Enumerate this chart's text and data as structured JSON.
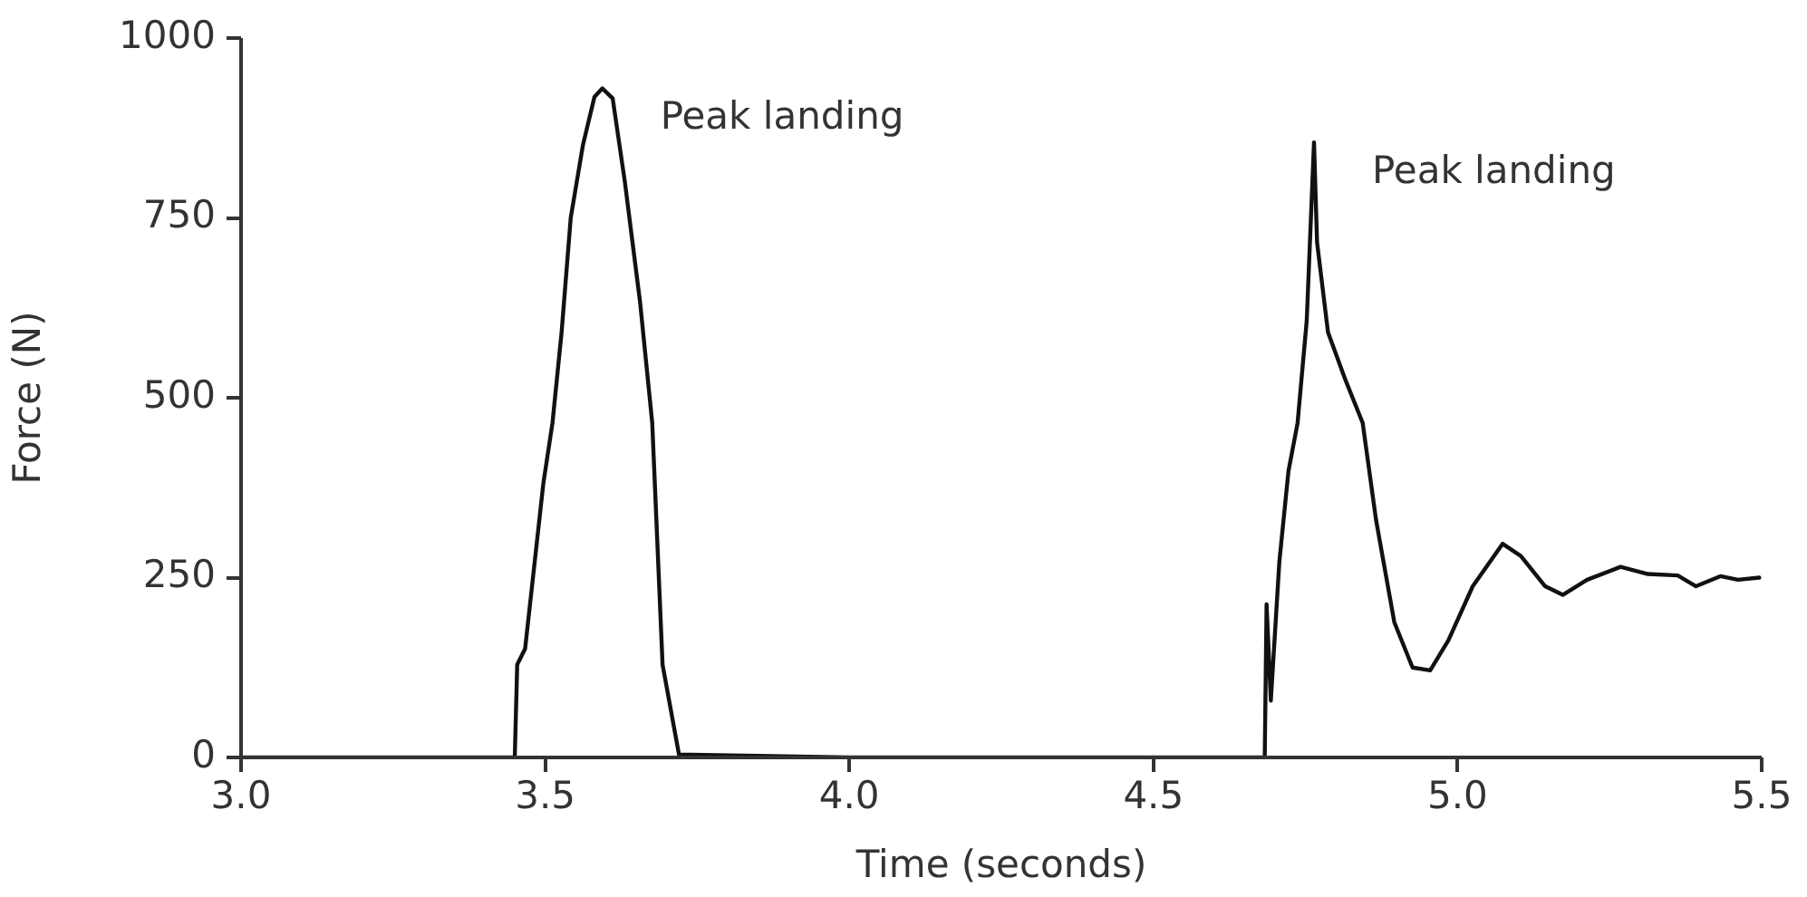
{
  "chart_data": {
    "type": "line",
    "xlabel": "Time (seconds)",
    "ylabel": "Force (N)",
    "xlim": [
      3.0,
      5.5
    ],
    "ylim": [
      0,
      1000
    ],
    "xticks": [
      {
        "value": 3,
        "label": "3.0"
      },
      {
        "value": 3.5,
        "label": "3.5"
      },
      {
        "value": 4,
        "label": "4.0"
      },
      {
        "value": 4.5,
        "label": "4.5"
      },
      {
        "value": 5,
        "label": "5.0"
      },
      {
        "value": 5.5,
        "label": "5.5"
      }
    ],
    "yticks": [
      0,
      250,
      500,
      750,
      1000
    ],
    "grid": false,
    "legend": false,
    "marker": "none",
    "line_style": "solid",
    "annotations": [
      {
        "text": "Peak landing",
        "x": 3.594,
        "y": 930
      },
      {
        "text": "Peak landing",
        "x": 4.764,
        "y": 855
      }
    ],
    "series": [
      {
        "color": "#111111",
        "x": [
          3.0,
          3.45,
          3.454,
          3.467,
          3.497,
          3.512,
          3.527,
          3.542,
          3.562,
          3.581,
          3.594,
          3.611,
          3.631,
          3.656,
          3.676,
          3.693,
          3.72,
          4.0,
          4.5,
          4.683,
          4.686,
          4.693,
          4.707,
          4.722,
          4.737,
          4.752,
          4.764,
          4.769,
          4.787,
          4.816,
          4.844,
          4.866,
          4.896,
          4.926,
          4.955,
          4.985,
          5.025,
          5.074,
          5.104,
          5.144,
          5.173,
          5.213,
          5.268,
          5.313,
          5.362,
          5.392,
          5.432,
          5.461,
          5.496
        ],
        "values": [
          0,
          0,
          129,
          151,
          381,
          465,
          591,
          750,
          851,
          918,
          930,
          916,
          800,
          633,
          465,
          129,
          4,
          0,
          0,
          0,
          213,
          79,
          272,
          398,
          465,
          607,
          855,
          716,
          591,
          524,
          465,
          330,
          188,
          125,
          121,
          163,
          238,
          297,
          280,
          238,
          226,
          247,
          265,
          255,
          253,
          238,
          252,
          247,
          250
        ]
      }
    ]
  }
}
